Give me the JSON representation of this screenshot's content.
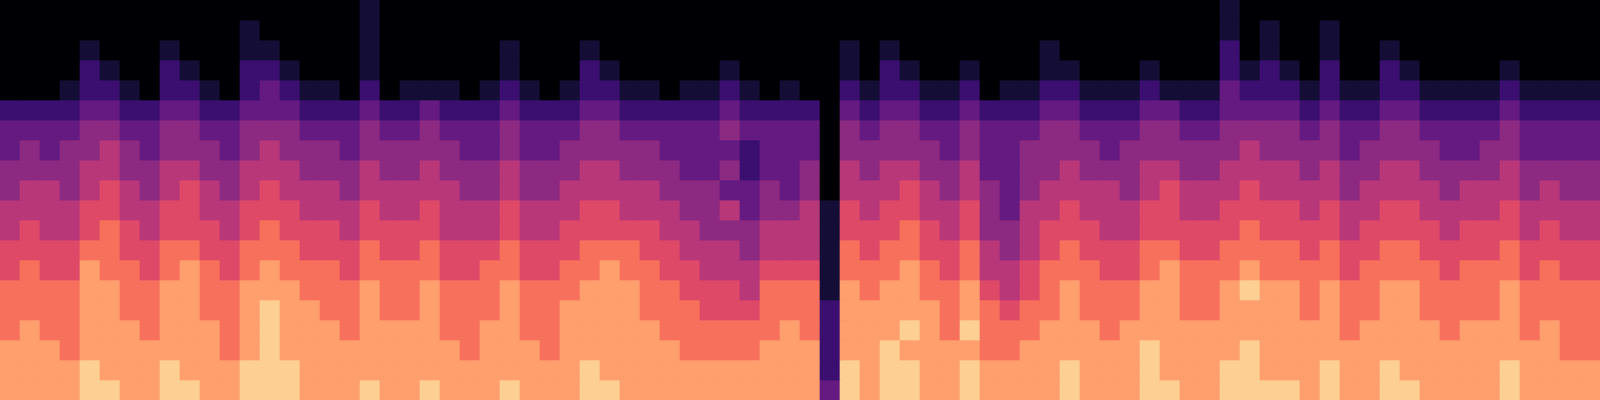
{
  "chart_data": {
    "type": "heatmap",
    "zlim": [
      0,
      10
    ],
    "tick_labels": false,
    "cells": [
      [
        0,
        0,
        0,
        0,
        0,
        0,
        0,
        0,
        0,
        0,
        0,
        0,
        0,
        0,
        0,
        0,
        0,
        0,
        1,
        0,
        0,
        0,
        0,
        0,
        0,
        0,
        0,
        0,
        0,
        0,
        0,
        0,
        0,
        0,
        0,
        0,
        0,
        0,
        0,
        0,
        0,
        0,
        0,
        0,
        0,
        0,
        0,
        0,
        0,
        0,
        0,
        0,
        0,
        0,
        0,
        0,
        0,
        0,
        0,
        0,
        0,
        1,
        0,
        0,
        0,
        0,
        0,
        0,
        0,
        0,
        0,
        0,
        0,
        0,
        0,
        0,
        0,
        0,
        0,
        0
      ],
      [
        0,
        0,
        0,
        0,
        0,
        0,
        0,
        0,
        0,
        0,
        0,
        0,
        1,
        0,
        0,
        0,
        0,
        0,
        1,
        0,
        0,
        0,
        0,
        0,
        0,
        0,
        0,
        0,
        0,
        0,
        0,
        0,
        0,
        0,
        0,
        0,
        0,
        0,
        0,
        0,
        0,
        0,
        0,
        0,
        0,
        0,
        0,
        0,
        0,
        0,
        0,
        0,
        0,
        0,
        0,
        0,
        0,
        0,
        0,
        0,
        0,
        1,
        0,
        1,
        0,
        0,
        1,
        0,
        0,
        0,
        0,
        0,
        0,
        0,
        0,
        0,
        0,
        0,
        0,
        0
      ],
      [
        0,
        0,
        0,
        0,
        1,
        0,
        0,
        0,
        1,
        0,
        0,
        0,
        1,
        1,
        0,
        0,
        0,
        0,
        1,
        0,
        0,
        0,
        0,
        0,
        0,
        1,
        0,
        0,
        0,
        1,
        0,
        0,
        0,
        0,
        0,
        0,
        0,
        0,
        0,
        0,
        0,
        0,
        1,
        0,
        1,
        0,
        0,
        0,
        0,
        0,
        0,
        0,
        1,
        0,
        0,
        0,
        0,
        0,
        0,
        0,
        0,
        2,
        0,
        1,
        0,
        0,
        1,
        0,
        0,
        1,
        0,
        0,
        0,
        0,
        0,
        0,
        0,
        0,
        0,
        0
      ],
      [
        0,
        0,
        0,
        0,
        2,
        1,
        0,
        0,
        2,
        1,
        0,
        0,
        2,
        2,
        1,
        0,
        0,
        0,
        1,
        0,
        0,
        0,
        0,
        0,
        0,
        1,
        0,
        0,
        0,
        2,
        1,
        0,
        0,
        0,
        0,
        0,
        1,
        0,
        0,
        0,
        0,
        0,
        1,
        0,
        2,
        1,
        0,
        0,
        1,
        0,
        0,
        0,
        1,
        1,
        0,
        0,
        0,
        1,
        0,
        0,
        0,
        2,
        1,
        2,
        1,
        0,
        2,
        0,
        0,
        2,
        1,
        0,
        0,
        0,
        0,
        1,
        0,
        0,
        0,
        0
      ],
      [
        0,
        0,
        0,
        1,
        2,
        2,
        1,
        0,
        2,
        2,
        1,
        0,
        2,
        3,
        2,
        1,
        1,
        0,
        2,
        0,
        1,
        1,
        1,
        0,
        1,
        2,
        1,
        0,
        1,
        2,
        2,
        1,
        1,
        0,
        1,
        1,
        2,
        1,
        0,
        1,
        0,
        0,
        2,
        1,
        2,
        2,
        1,
        1,
        2,
        0,
        1,
        1,
        2,
        2,
        1,
        1,
        1,
        2,
        1,
        1,
        1,
        3,
        2,
        2,
        2,
        1,
        2,
        1,
        1,
        2,
        2,
        1,
        1,
        1,
        1,
        2,
        1,
        1,
        1,
        1
      ],
      [
        2,
        2,
        2,
        2,
        3,
        3,
        2,
        2,
        3,
        3,
        2,
        2,
        3,
        3,
        3,
        2,
        2,
        2,
        3,
        2,
        2,
        3,
        2,
        2,
        2,
        3,
        2,
        2,
        2,
        3,
        3,
        2,
        2,
        2,
        2,
        2,
        3,
        2,
        2,
        2,
        2,
        0,
        3,
        2,
        3,
        3,
        2,
        2,
        3,
        2,
        2,
        2,
        3,
        3,
        2,
        2,
        2,
        3,
        3,
        2,
        2,
        3,
        3,
        3,
        3,
        2,
        3,
        2,
        2,
        3,
        3,
        2,
        2,
        2,
        2,
        3,
        2,
        2,
        2,
        2
      ],
      [
        3,
        3,
        3,
        3,
        4,
        4,
        3,
        3,
        4,
        4,
        3,
        3,
        4,
        4,
        4,
        3,
        3,
        3,
        4,
        3,
        3,
        4,
        3,
        3,
        3,
        4,
        3,
        3,
        3,
        4,
        4,
        3,
        3,
        3,
        3,
        3,
        4,
        3,
        3,
        3,
        3,
        0,
        4,
        3,
        4,
        4,
        3,
        3,
        4,
        3,
        3,
        3,
        4,
        4,
        3,
        3,
        3,
        4,
        4,
        3,
        3,
        4,
        4,
        4,
        4,
        3,
        4,
        3,
        3,
        4,
        4,
        3,
        3,
        3,
        3,
        4,
        3,
        3,
        3,
        3
      ],
      [
        3,
        4,
        3,
        4,
        4,
        5,
        4,
        3,
        4,
        4,
        4,
        3,
        4,
        5,
        4,
        4,
        4,
        3,
        4,
        4,
        4,
        4,
        4,
        3,
        3,
        4,
        3,
        3,
        4,
        4,
        4,
        4,
        4,
        3,
        3,
        3,
        3,
        2,
        3,
        3,
        3,
        0,
        4,
        4,
        4,
        4,
        4,
        3,
        4,
        3,
        3,
        4,
        4,
        4,
        4,
        3,
        4,
        4,
        4,
        4,
        4,
        4,
        5,
        4,
        4,
        4,
        4,
        3,
        4,
        4,
        4,
        4,
        3,
        3,
        4,
        4,
        3,
        3,
        3,
        3
      ],
      [
        4,
        4,
        4,
        4,
        5,
        5,
        4,
        4,
        5,
        5,
        4,
        4,
        5,
        5,
        5,
        4,
        4,
        4,
        5,
        4,
        4,
        5,
        4,
        4,
        4,
        5,
        4,
        4,
        4,
        5,
        5,
        4,
        4,
        4,
        3,
        3,
        4,
        2,
        3,
        3,
        4,
        0,
        5,
        4,
        5,
        5,
        4,
        4,
        5,
        3,
        3,
        4,
        4,
        5,
        4,
        4,
        4,
        5,
        5,
        4,
        4,
        5,
        5,
        5,
        5,
        4,
        5,
        4,
        4,
        5,
        5,
        4,
        4,
        4,
        4,
        5,
        4,
        4,
        4,
        4
      ],
      [
        4,
        5,
        5,
        4,
        5,
        6,
        5,
        4,
        5,
        6,
        5,
        4,
        5,
        6,
        5,
        5,
        5,
        4,
        5,
        5,
        5,
        5,
        5,
        4,
        4,
        5,
        4,
        4,
        5,
        5,
        5,
        5,
        5,
        4,
        4,
        4,
        3,
        3,
        4,
        3,
        4,
        0,
        5,
        5,
        5,
        6,
        5,
        4,
        5,
        4,
        3,
        4,
        5,
        5,
        5,
        5,
        4,
        5,
        6,
        5,
        5,
        5,
        6,
        5,
        5,
        5,
        5,
        4,
        5,
        5,
        5,
        5,
        4,
        5,
        5,
        5,
        4,
        5,
        4,
        4
      ],
      [
        5,
        5,
        5,
        5,
        6,
        6,
        5,
        5,
        6,
        6,
        5,
        5,
        6,
        6,
        6,
        5,
        5,
        5,
        6,
        5,
        5,
        6,
        5,
        5,
        5,
        6,
        5,
        5,
        5,
        6,
        6,
        5,
        5,
        5,
        4,
        4,
        5,
        3,
        4,
        4,
        5,
        1,
        6,
        5,
        6,
        6,
        5,
        5,
        6,
        4,
        3,
        5,
        5,
        6,
        5,
        5,
        5,
        6,
        6,
        5,
        5,
        6,
        6,
        6,
        6,
        5,
        6,
        5,
        5,
        6,
        6,
        5,
        5,
        5,
        5,
        6,
        5,
        5,
        5,
        5
      ],
      [
        5,
        6,
        5,
        5,
        6,
        7,
        6,
        5,
        6,
        6,
        6,
        5,
        6,
        7,
        6,
        6,
        6,
        5,
        6,
        6,
        6,
        6,
        5,
        5,
        5,
        6,
        5,
        5,
        6,
        6,
        6,
        6,
        6,
        5,
        5,
        4,
        4,
        4,
        5,
        5,
        5,
        1,
        6,
        6,
        6,
        7,
        6,
        5,
        6,
        4,
        4,
        5,
        6,
        6,
        6,
        5,
        5,
        6,
        6,
        6,
        6,
        6,
        7,
        6,
        6,
        6,
        6,
        5,
        6,
        6,
        6,
        6,
        5,
        6,
        6,
        6,
        5,
        6,
        5,
        5
      ],
      [
        6,
        6,
        6,
        6,
        7,
        7,
        6,
        6,
        7,
        7,
        6,
        6,
        7,
        7,
        7,
        6,
        6,
        6,
        7,
        6,
        6,
        7,
        6,
        6,
        6,
        7,
        6,
        6,
        6,
        7,
        7,
        7,
        6,
        6,
        5,
        5,
        5,
        4,
        5,
        5,
        5,
        1,
        7,
        6,
        7,
        7,
        6,
        6,
        7,
        5,
        4,
        5,
        6,
        7,
        6,
        6,
        6,
        7,
        7,
        6,
        6,
        7,
        7,
        7,
        7,
        6,
        7,
        6,
        6,
        7,
        7,
        6,
        6,
        6,
        6,
        7,
        6,
        6,
        6,
        6
      ],
      [
        6,
        7,
        6,
        6,
        8,
        7,
        7,
        6,
        7,
        8,
        7,
        6,
        7,
        8,
        7,
        7,
        7,
        6,
        7,
        7,
        7,
        7,
        6,
        6,
        7,
        7,
        6,
        6,
        7,
        7,
        8,
        7,
        7,
        6,
        6,
        5,
        5,
        5,
        6,
        6,
        6,
        1,
        7,
        7,
        7,
        8,
        7,
        6,
        7,
        5,
        5,
        6,
        7,
        7,
        7,
        6,
        6,
        7,
        8,
        7,
        7,
        7,
        8,
        7,
        7,
        7,
        7,
        6,
        7,
        7,
        7,
        7,
        6,
        7,
        7,
        7,
        6,
        7,
        6,
        6
      ],
      [
        7,
        7,
        7,
        7,
        8,
        8,
        7,
        7,
        8,
        8,
        7,
        7,
        8,
        8,
        8,
        7,
        7,
        7,
        8,
        7,
        7,
        8,
        7,
        7,
        7,
        8,
        7,
        7,
        7,
        8,
        8,
        8,
        7,
        7,
        6,
        6,
        6,
        5,
        7,
        7,
        7,
        1,
        8,
        7,
        8,
        8,
        7,
        7,
        8,
        6,
        5,
        6,
        7,
        8,
        7,
        7,
        7,
        8,
        8,
        7,
        7,
        8,
        9,
        8,
        8,
        7,
        8,
        7,
        7,
        8,
        8,
        7,
        7,
        7,
        7,
        8,
        7,
        7,
        7,
        7
      ],
      [
        7,
        7,
        7,
        7,
        8,
        8,
        7,
        7,
        8,
        8,
        7,
        7,
        8,
        9,
        8,
        8,
        7,
        7,
        8,
        7,
        7,
        8,
        7,
        7,
        7,
        8,
        7,
        7,
        8,
        8,
        8,
        8,
        7,
        7,
        7,
        6,
        6,
        6,
        7,
        7,
        7,
        2,
        8,
        8,
        8,
        8,
        8,
        7,
        8,
        7,
        6,
        7,
        7,
        8,
        7,
        7,
        7,
        8,
        8,
        7,
        7,
        8,
        8,
        8,
        8,
        7,
        8,
        7,
        7,
        8,
        8,
        7,
        7,
        7,
        7,
        8,
        7,
        7,
        7,
        7
      ],
      [
        7,
        8,
        7,
        7,
        8,
        8,
        8,
        7,
        8,
        8,
        8,
        7,
        8,
        9,
        8,
        8,
        8,
        7,
        8,
        8,
        8,
        8,
        7,
        7,
        8,
        8,
        7,
        7,
        8,
        8,
        8,
        8,
        8,
        7,
        7,
        7,
        7,
        7,
        7,
        8,
        7,
        2,
        8,
        8,
        8,
        9,
        8,
        7,
        9,
        7,
        7,
        7,
        8,
        8,
        8,
        7,
        8,
        8,
        8,
        8,
        8,
        8,
        8,
        8,
        8,
        8,
        8,
        7,
        8,
        8,
        8,
        8,
        7,
        8,
        8,
        8,
        7,
        8,
        7,
        7
      ],
      [
        8,
        8,
        8,
        7,
        8,
        8,
        8,
        8,
        8,
        8,
        8,
        7,
        8,
        9,
        8,
        8,
        8,
        8,
        8,
        8,
        8,
        8,
        8,
        7,
        8,
        8,
        8,
        7,
        8,
        8,
        8,
        8,
        8,
        8,
        7,
        7,
        7,
        7,
        8,
        8,
        8,
        2,
        8,
        8,
        9,
        8,
        8,
        8,
        8,
        7,
        7,
        8,
        8,
        8,
        8,
        8,
        8,
        9,
        8,
        8,
        8,
        8,
        9,
        8,
        8,
        8,
        8,
        8,
        8,
        8,
        8,
        8,
        8,
        8,
        8,
        8,
        8,
        8,
        7,
        7
      ],
      [
        8,
        8,
        8,
        8,
        9,
        8,
        8,
        8,
        9,
        8,
        8,
        8,
        9,
        9,
        9,
        8,
        8,
        8,
        8,
        8,
        8,
        8,
        8,
        8,
        8,
        8,
        8,
        8,
        8,
        9,
        8,
        8,
        8,
        8,
        8,
        8,
        8,
        8,
        8,
        8,
        8,
        2,
        9,
        8,
        9,
        9,
        8,
        8,
        9,
        8,
        8,
        8,
        8,
        9,
        8,
        8,
        8,
        9,
        8,
        8,
        8,
        9,
        9,
        8,
        8,
        8,
        9,
        8,
        8,
        9,
        8,
        8,
        8,
        8,
        8,
        9,
        8,
        8,
        8,
        8
      ],
      [
        8,
        8,
        8,
        8,
        9,
        9,
        8,
        8,
        9,
        9,
        8,
        8,
        9,
        9,
        9,
        8,
        8,
        8,
        9,
        8,
        8,
        9,
        8,
        8,
        8,
        9,
        8,
        8,
        8,
        9,
        9,
        8,
        8,
        8,
        8,
        8,
        8,
        8,
        8,
        8,
        8,
        3,
        9,
        8,
        9,
        9,
        8,
        8,
        9,
        8,
        8,
        8,
        8,
        9,
        8,
        8,
        8,
        9,
        9,
        8,
        8,
        9,
        9,
        9,
        9,
        8,
        9,
        8,
        8,
        9,
        9,
        8,
        8,
        8,
        8,
        9,
        8,
        8,
        8,
        8
      ]
    ]
  }
}
